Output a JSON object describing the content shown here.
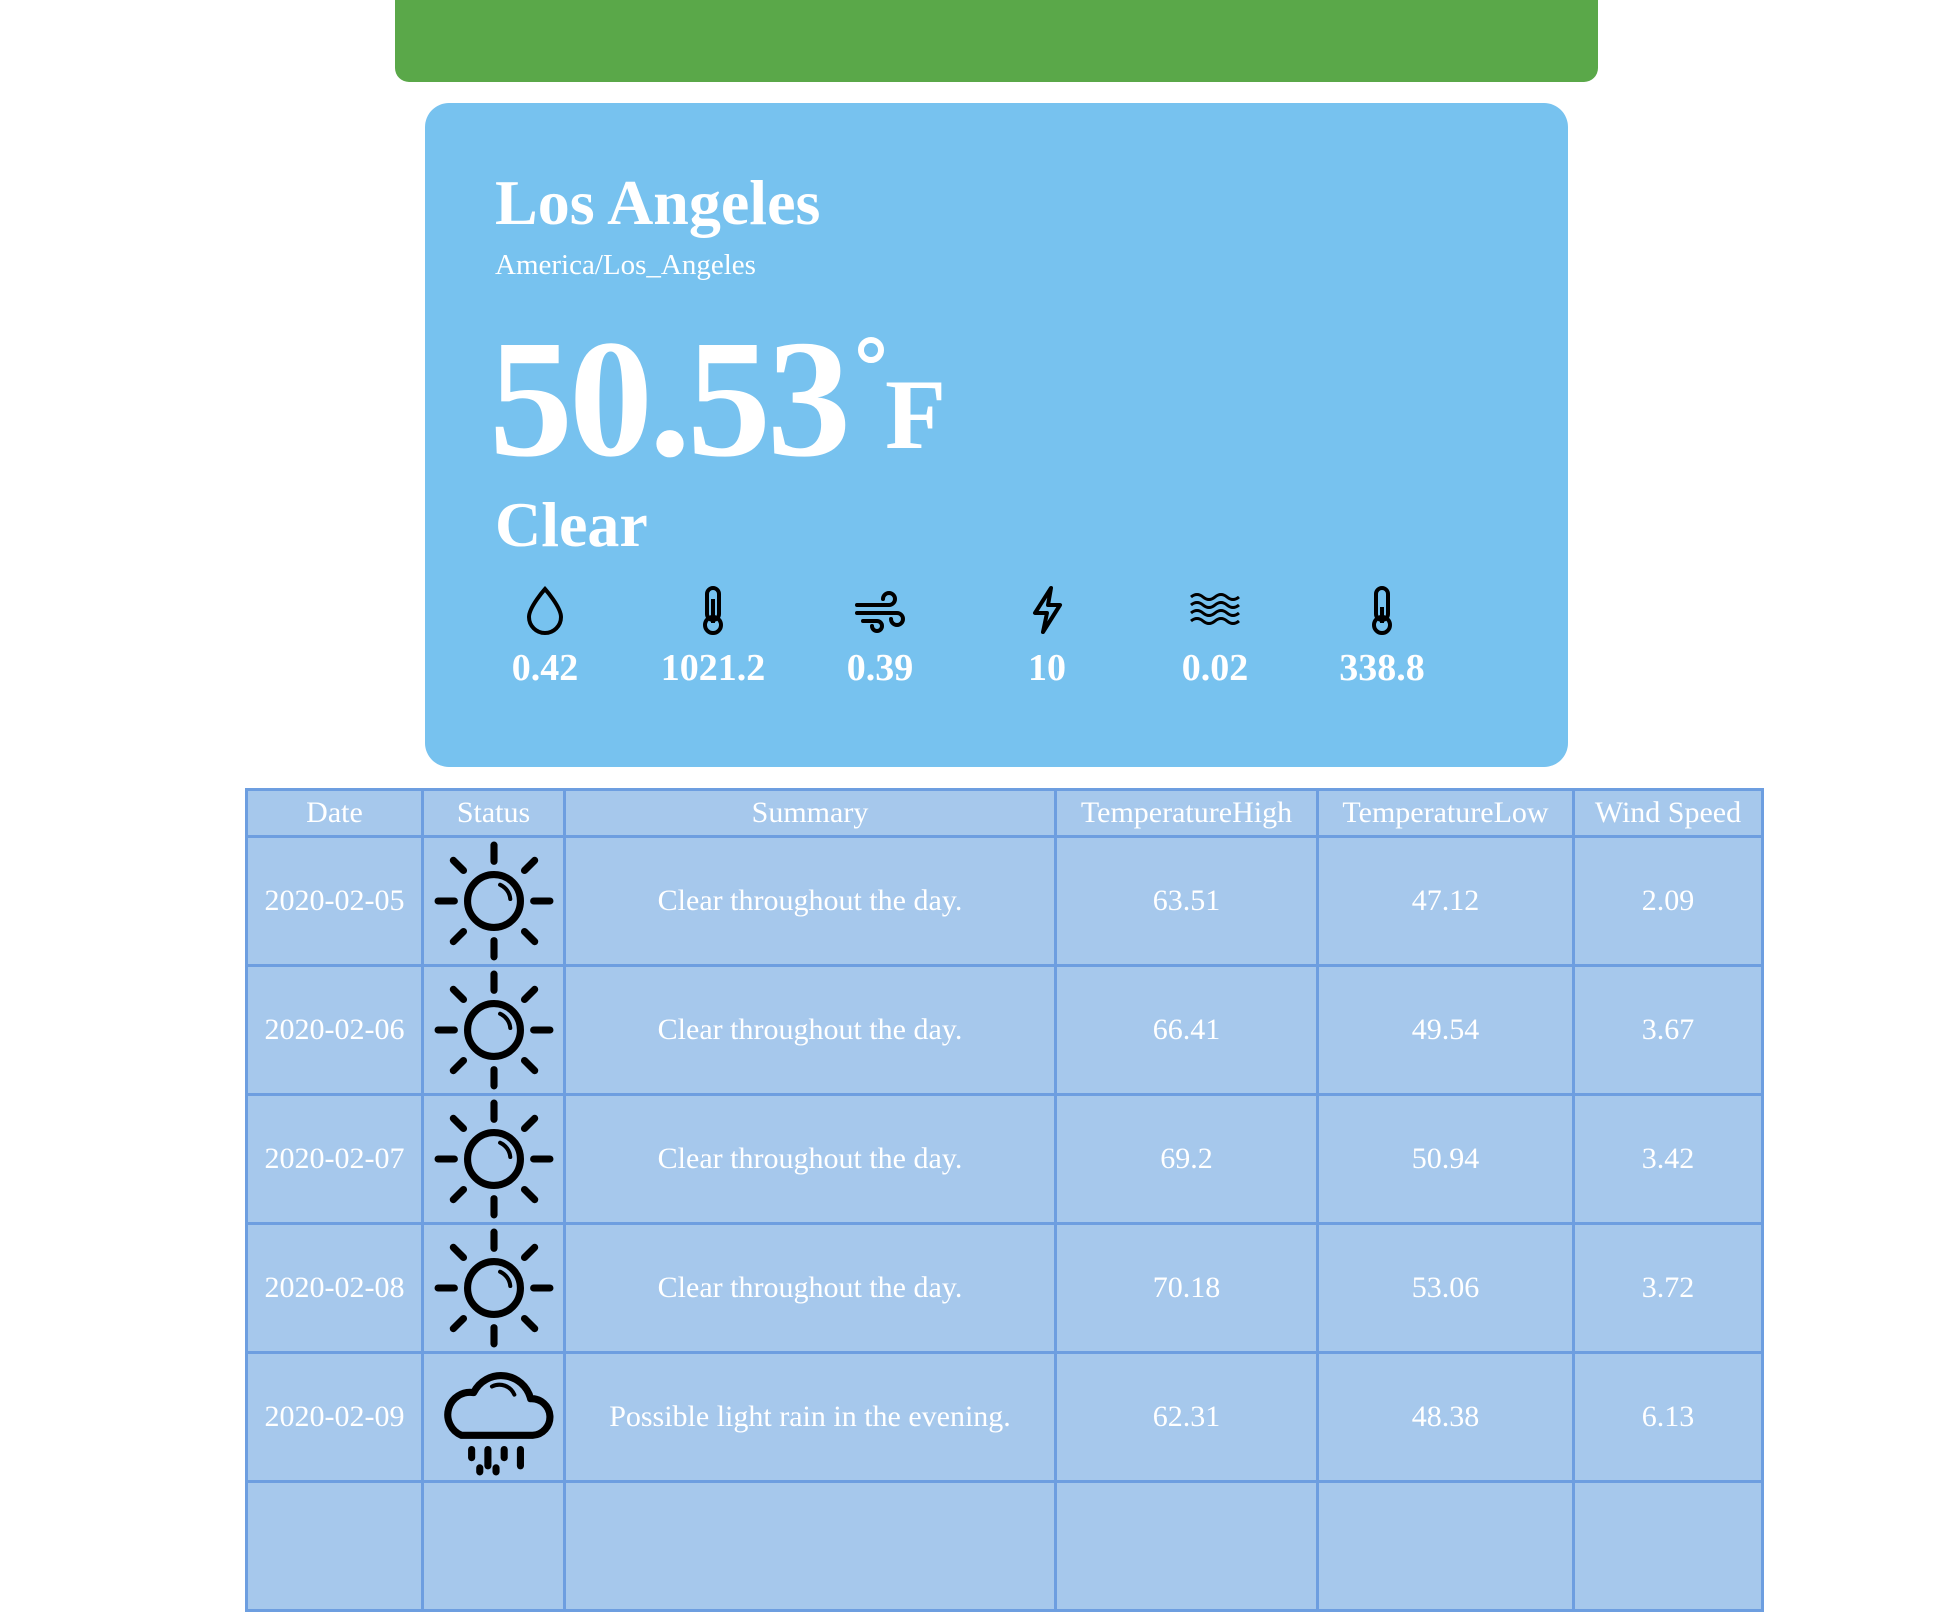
{
  "current": {
    "city": "Los Angeles",
    "timezone": "America/Los_Angeles",
    "temperature": "50.53",
    "unit": "F",
    "condition": "Clear",
    "stats": [
      {
        "icon": "humidity-drop-icon",
        "value": "0.42"
      },
      {
        "icon": "pressure-thermometer-icon",
        "value": "1021.2"
      },
      {
        "icon": "wind-icon",
        "value": "0.39"
      },
      {
        "icon": "lightning-icon",
        "value": "10"
      },
      {
        "icon": "waves-icon",
        "value": "0.02"
      },
      {
        "icon": "thermometer-icon",
        "value": "338.8"
      }
    ]
  },
  "table": {
    "headers": [
      "Date",
      "Status",
      "Summary",
      "TemperatureHigh",
      "TemperatureLow",
      "Wind Speed"
    ],
    "rows": [
      {
        "date": "2020-02-05",
        "icon": "sun-icon",
        "summary": "Clear throughout the day.",
        "high": "63.51",
        "low": "47.12",
        "wind": "2.09"
      },
      {
        "date": "2020-02-06",
        "icon": "sun-icon",
        "summary": "Clear throughout the day.",
        "high": "66.41",
        "low": "49.54",
        "wind": "3.67"
      },
      {
        "date": "2020-02-07",
        "icon": "sun-icon",
        "summary": "Clear throughout the day.",
        "high": "69.2",
        "low": "50.94",
        "wind": "3.42"
      },
      {
        "date": "2020-02-08",
        "icon": "sun-icon",
        "summary": "Clear throughout the day.",
        "high": "70.18",
        "low": "53.06",
        "wind": "3.72"
      },
      {
        "date": "2020-02-09",
        "icon": "rain-cloud-icon",
        "summary": "Possible light rain in the evening.",
        "high": "62.31",
        "low": "48.38",
        "wind": "6.13"
      }
    ]
  },
  "colors": {
    "card": "#77c2ef",
    "header_bar": "#5aa849",
    "table_bg": "#a6c8ec",
    "table_border": "#6d9ee0"
  }
}
